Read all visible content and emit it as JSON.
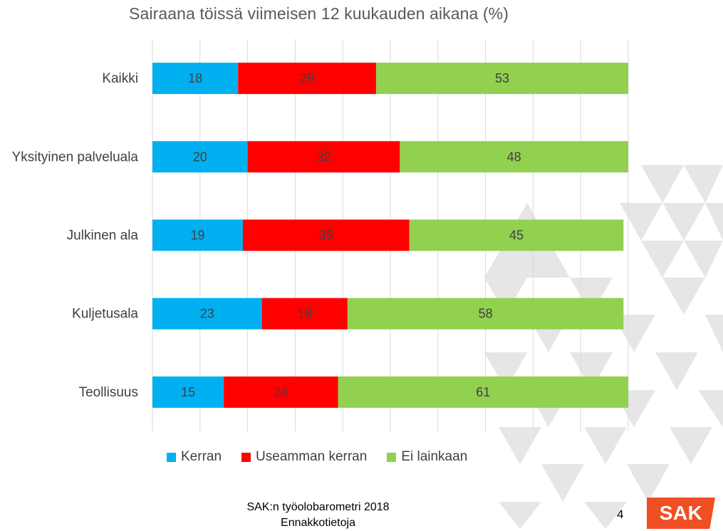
{
  "chart_data": {
    "type": "bar",
    "orientation": "horizontal",
    "stacked": true,
    "title": "Sairaana töissä viimeisen 12 kuukauden aikana (%)",
    "categories": [
      "Kaikki",
      "Yksityinen palveluala",
      "Julkinen ala",
      "Kuljetusala",
      "Teollisuus"
    ],
    "series": [
      {
        "name": "Kerran",
        "color": "#00b0f0",
        "values": [
          18,
          20,
          19,
          23,
          15
        ]
      },
      {
        "name": "Useamman kerran",
        "color": "#ff0000",
        "values": [
          29,
          32,
          35,
          18,
          24
        ]
      },
      {
        "name": "Ei lainkaan",
        "color": "#92d050",
        "values": [
          53,
          48,
          45,
          58,
          61
        ]
      }
    ],
    "xlim": [
      0,
      100
    ],
    "grid": true,
    "legend_position": "bottom",
    "xlabel": "",
    "ylabel": ""
  },
  "footer": {
    "source_line1": "SAK:n työolobarometri 2018",
    "source_line2": "Ennakkotietoja",
    "page_number": "4",
    "logo_text": "SAK"
  },
  "colors": {
    "pattern": "#e6e6e6",
    "grid": "#d9d9d9",
    "logo": "#f04e23"
  }
}
